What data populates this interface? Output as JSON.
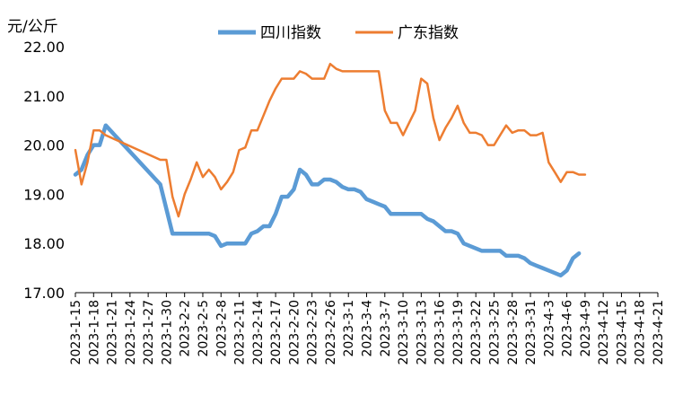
{
  "chart_data": {
    "type": "line",
    "unit_label": "元/公斤",
    "ylim": [
      17.0,
      22.0
    ],
    "y_ticks": [
      "17.00",
      "18.00",
      "19.00",
      "20.00",
      "21.00",
      "22.00"
    ],
    "x_ticks": [
      "2023-1-15",
      "2023-1-18",
      "2023-1-21",
      "2023-1-24",
      "2023-1-27",
      "2023-1-30",
      "2023-2-2",
      "2023-2-5",
      "2023-2-8",
      "2023-2-11",
      "2023-2-14",
      "2023-2-17",
      "2023-2-20",
      "2023-2-23",
      "2023-2-26",
      "2023-3-1",
      "2023-3-4",
      "2023-3-7",
      "2023-3-10",
      "2023-3-13",
      "2023-3-16",
      "2023-3-19",
      "2023-3-22",
      "2023-3-25",
      "2023-3-28",
      "2023-3-31",
      "2023-4-3",
      "2023-4-6",
      "2023-4-9",
      "2023-4-12",
      "2023-4-15",
      "2023-4-18",
      "2023-4-21"
    ],
    "legend_position": "top-center",
    "grid": false,
    "series": [
      {
        "name": "四川指数",
        "color": "#5B9BD5",
        "points": [
          [
            "2023-1-15",
            19.4
          ],
          [
            "2023-1-16",
            19.5
          ],
          [
            "2023-1-17",
            19.8
          ],
          [
            "2023-1-18",
            20.0
          ],
          [
            "2023-1-19",
            20.0
          ],
          [
            "2023-1-20",
            20.4
          ],
          [
            "2023-1-29",
            19.2
          ],
          [
            "2023-1-31",
            18.2
          ],
          [
            "2023-2-1",
            18.2
          ],
          [
            "2023-2-2",
            18.2
          ],
          [
            "2023-2-3",
            18.2
          ],
          [
            "2023-2-4",
            18.2
          ],
          [
            "2023-2-5",
            18.2
          ],
          [
            "2023-2-6",
            18.2
          ],
          [
            "2023-2-7",
            18.15
          ],
          [
            "2023-2-8",
            17.95
          ],
          [
            "2023-2-9",
            18.0
          ],
          [
            "2023-2-10",
            18.0
          ],
          [
            "2023-2-11",
            18.0
          ],
          [
            "2023-2-12",
            18.0
          ],
          [
            "2023-2-13",
            18.2
          ],
          [
            "2023-2-14",
            18.25
          ],
          [
            "2023-2-15",
            18.35
          ],
          [
            "2023-2-16",
            18.35
          ],
          [
            "2023-2-17",
            18.6
          ],
          [
            "2023-2-18",
            18.95
          ],
          [
            "2023-2-19",
            18.95
          ],
          [
            "2023-2-20",
            19.1
          ],
          [
            "2023-2-21",
            19.5
          ],
          [
            "2023-2-22",
            19.4
          ],
          [
            "2023-2-23",
            19.2
          ],
          [
            "2023-2-24",
            19.2
          ],
          [
            "2023-2-25",
            19.3
          ],
          [
            "2023-2-26",
            19.3
          ],
          [
            "2023-2-27",
            19.25
          ],
          [
            "2023-2-28",
            19.15
          ],
          [
            "2023-3-1",
            19.1
          ],
          [
            "2023-3-2",
            19.1
          ],
          [
            "2023-3-3",
            19.05
          ],
          [
            "2023-3-4",
            18.9
          ],
          [
            "2023-3-5",
            18.85
          ],
          [
            "2023-3-6",
            18.8
          ],
          [
            "2023-3-7",
            18.75
          ],
          [
            "2023-3-8",
            18.6
          ],
          [
            "2023-3-9",
            18.6
          ],
          [
            "2023-3-10",
            18.6
          ],
          [
            "2023-3-11",
            18.6
          ],
          [
            "2023-3-12",
            18.6
          ],
          [
            "2023-3-13",
            18.6
          ],
          [
            "2023-3-14",
            18.5
          ],
          [
            "2023-3-15",
            18.45
          ],
          [
            "2023-3-16",
            18.35
          ],
          [
            "2023-3-17",
            18.25
          ],
          [
            "2023-3-18",
            18.25
          ],
          [
            "2023-3-19",
            18.2
          ],
          [
            "2023-3-20",
            18.0
          ],
          [
            "2023-3-21",
            17.95
          ],
          [
            "2023-3-22",
            17.9
          ],
          [
            "2023-3-23",
            17.85
          ],
          [
            "2023-3-24",
            17.85
          ],
          [
            "2023-3-25",
            17.85
          ],
          [
            "2023-3-26",
            17.85
          ],
          [
            "2023-3-27",
            17.75
          ],
          [
            "2023-3-28",
            17.75
          ],
          [
            "2023-3-29",
            17.75
          ],
          [
            "2023-3-30",
            17.7
          ],
          [
            "2023-3-31",
            17.6
          ],
          [
            "2023-4-1",
            17.55
          ],
          [
            "2023-4-2",
            17.5
          ],
          [
            "2023-4-3",
            17.45
          ],
          [
            "2023-4-4",
            17.4
          ],
          [
            "2023-4-5",
            17.35
          ],
          [
            "2023-4-6",
            17.45
          ],
          [
            "2023-4-7",
            17.7
          ],
          [
            "2023-4-8",
            17.8
          ]
        ]
      },
      {
        "name": "广东指数",
        "color": "#ED7D31",
        "points": [
          [
            "2023-1-15",
            19.9
          ],
          [
            "2023-1-16",
            19.2
          ],
          [
            "2023-1-17",
            19.65
          ],
          [
            "2023-1-18",
            20.3
          ],
          [
            "2023-1-19",
            20.3
          ],
          [
            "2023-1-20",
            20.2
          ],
          [
            "2023-1-29",
            19.7
          ],
          [
            "2023-1-30",
            19.7
          ],
          [
            "2023-1-31",
            18.95
          ],
          [
            "2023-2-1",
            18.55
          ],
          [
            "2023-2-2",
            19.0
          ],
          [
            "2023-2-3",
            19.3
          ],
          [
            "2023-2-4",
            19.65
          ],
          [
            "2023-2-5",
            19.35
          ],
          [
            "2023-2-6",
            19.5
          ],
          [
            "2023-2-7",
            19.35
          ],
          [
            "2023-2-8",
            19.1
          ],
          [
            "2023-2-9",
            19.25
          ],
          [
            "2023-2-10",
            19.45
          ],
          [
            "2023-2-11",
            19.9
          ],
          [
            "2023-2-12",
            19.95
          ],
          [
            "2023-2-13",
            20.3
          ],
          [
            "2023-2-14",
            20.3
          ],
          [
            "2023-2-15",
            20.6
          ],
          [
            "2023-2-16",
            20.9
          ],
          [
            "2023-2-17",
            21.15
          ],
          [
            "2023-2-18",
            21.35
          ],
          [
            "2023-2-19",
            21.35
          ],
          [
            "2023-2-20",
            21.35
          ],
          [
            "2023-2-21",
            21.5
          ],
          [
            "2023-2-22",
            21.45
          ],
          [
            "2023-2-23",
            21.35
          ],
          [
            "2023-2-24",
            21.35
          ],
          [
            "2023-2-25",
            21.35
          ],
          [
            "2023-2-26",
            21.65
          ],
          [
            "2023-2-27",
            21.55
          ],
          [
            "2023-2-28",
            21.5
          ],
          [
            "2023-3-1",
            21.5
          ],
          [
            "2023-3-2",
            21.5
          ],
          [
            "2023-3-3",
            21.5
          ],
          [
            "2023-3-4",
            21.5
          ],
          [
            "2023-3-5",
            21.5
          ],
          [
            "2023-3-6",
            21.5
          ],
          [
            "2023-3-7",
            20.7
          ],
          [
            "2023-3-8",
            20.45
          ],
          [
            "2023-3-9",
            20.45
          ],
          [
            "2023-3-10",
            20.2
          ],
          [
            "2023-3-11",
            20.45
          ],
          [
            "2023-3-12",
            20.7
          ],
          [
            "2023-3-13",
            21.35
          ],
          [
            "2023-3-14",
            21.25
          ],
          [
            "2023-3-15",
            20.55
          ],
          [
            "2023-3-16",
            20.1
          ],
          [
            "2023-3-17",
            20.35
          ],
          [
            "2023-3-18",
            20.55
          ],
          [
            "2023-3-19",
            20.8
          ],
          [
            "2023-3-20",
            20.45
          ],
          [
            "2023-3-21",
            20.25
          ],
          [
            "2023-3-22",
            20.25
          ],
          [
            "2023-3-23",
            20.2
          ],
          [
            "2023-3-24",
            20.0
          ],
          [
            "2023-3-25",
            20.0
          ],
          [
            "2023-3-26",
            20.2
          ],
          [
            "2023-3-27",
            20.4
          ],
          [
            "2023-3-28",
            20.25
          ],
          [
            "2023-3-29",
            20.3
          ],
          [
            "2023-3-30",
            20.3
          ],
          [
            "2023-3-31",
            20.2
          ],
          [
            "2023-4-1",
            20.2
          ],
          [
            "2023-4-2",
            20.25
          ],
          [
            "2023-4-3",
            19.65
          ],
          [
            "2023-4-4",
            19.45
          ],
          [
            "2023-4-5",
            19.25
          ],
          [
            "2023-4-6",
            19.45
          ],
          [
            "2023-4-7",
            19.45
          ],
          [
            "2023-4-8",
            19.4
          ],
          [
            "2023-4-9",
            19.4
          ]
        ]
      }
    ]
  }
}
